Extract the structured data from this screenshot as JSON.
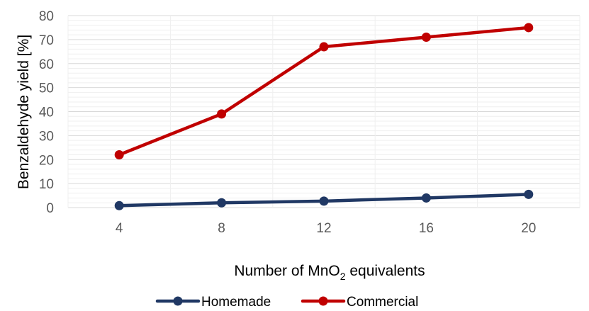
{
  "chart_data": {
    "type": "line",
    "title": "",
    "xlabel": "Number of MnO2 equivalents",
    "xlabel_parts": {
      "pre": "Number of MnO",
      "sub": "2",
      "post": " equivalents"
    },
    "ylabel": "Benzaldehyde yield [%]",
    "categories": [
      "4",
      "8",
      "12",
      "16",
      "20"
    ],
    "ylim": [
      0,
      80
    ],
    "yticks": [
      "0",
      "10",
      "20",
      "30",
      "40",
      "50",
      "60",
      "70",
      "80"
    ],
    "grid": "major and minor horizontal",
    "legend_position": "bottom",
    "series": [
      {
        "name": "Homemade",
        "values": [
          0.8,
          2.0,
          2.7,
          4.0,
          5.5
        ],
        "color": "#203864"
      },
      {
        "name": "Commercial",
        "values": [
          22,
          39,
          67,
          71,
          75
        ],
        "color": "#C00000"
      }
    ]
  }
}
